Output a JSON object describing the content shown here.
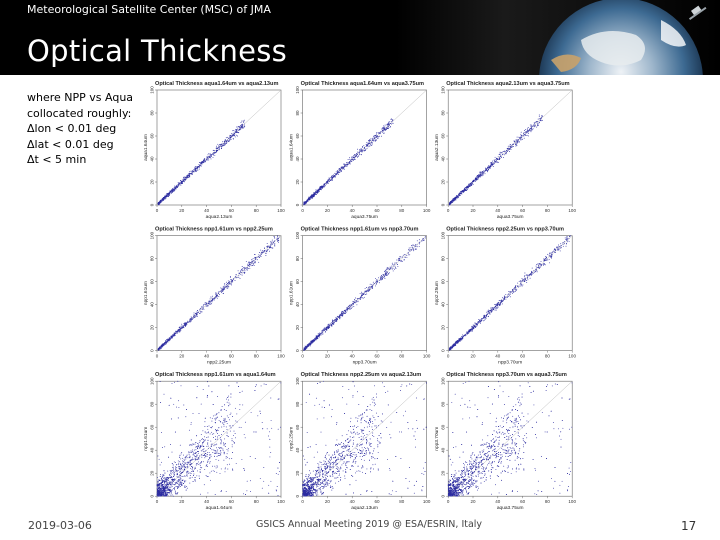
{
  "header": {
    "org": "Meteorological Satellite Center (MSC) of JMA",
    "title": "Optical Thickness"
  },
  "note": {
    "lines": [
      "where NPP vs Aqua",
      "collocated roughly:",
      "Δlon < 0.01 deg",
      "Δlat < 0.01 deg",
      "Δt < 5 min"
    ]
  },
  "footer": {
    "date": "2019-03-06",
    "center": "GSICS Annual Meeting 2019 @ ESA/ESRIN, Italy",
    "page": "17"
  },
  "colors": {
    "points": "#2c2ca0",
    "diagonal": "#bbbbbb",
    "frame": "#666666"
  },
  "chart_data": [
    {
      "type": "scatter",
      "title": "Optical Thickness aqua1.64um vs aqua2.13um",
      "xlabel": "aqua2.13um",
      "ylabel": "aqua1.64um",
      "xlim": [
        0,
        100
      ],
      "ylim": [
        0,
        100
      ],
      "x_ticks": [
        0,
        20,
        40,
        60,
        80,
        100
      ],
      "y_ticks": [
        0,
        20,
        40,
        60,
        80,
        100
      ],
      "pattern": "tight",
      "x_max": 70
    },
    {
      "type": "scatter",
      "title": "Optical Thickness aqua1.64um vs aqua3.75um",
      "xlabel": "aqua3.75um",
      "ylabel": "aqua1.64um",
      "xlim": [
        0,
        100
      ],
      "ylim": [
        0,
        100
      ],
      "x_ticks": [
        0,
        20,
        40,
        60,
        80,
        100
      ],
      "y_ticks": [
        0,
        20,
        40,
        60,
        80,
        100
      ],
      "pattern": "tight",
      "x_max": 72
    },
    {
      "type": "scatter",
      "title": "Optical Thickness aqua2.13um vs aqua3.75um",
      "xlabel": "aqua3.75um",
      "ylabel": "aqua2.13um",
      "xlim": [
        0,
        100
      ],
      "ylim": [
        0,
        100
      ],
      "x_ticks": [
        0,
        20,
        40,
        60,
        80,
        100
      ],
      "y_ticks": [
        0,
        20,
        40,
        60,
        80,
        100
      ],
      "pattern": "tight",
      "x_max": 75
    },
    {
      "type": "scatter",
      "title": "Optical Thickness npp1.61um vs npp2.25um",
      "xlabel": "npp2.25um",
      "ylabel": "npp1.61um",
      "xlim": [
        0,
        100
      ],
      "ylim": [
        0,
        100
      ],
      "x_ticks": [
        0,
        20,
        40,
        60,
        80,
        100
      ],
      "y_ticks": [
        0,
        20,
        40,
        60,
        80,
        100
      ],
      "pattern": "tight",
      "x_max": 98
    },
    {
      "type": "scatter",
      "title": "Optical Thickness npp1.61um vs npp3.70um",
      "xlabel": "npp3.70um",
      "ylabel": "npp1.61um",
      "xlim": [
        0,
        100
      ],
      "ylim": [
        0,
        100
      ],
      "x_ticks": [
        0,
        20,
        40,
        60,
        80,
        100
      ],
      "y_ticks": [
        0,
        20,
        40,
        60,
        80,
        100
      ],
      "pattern": "tight",
      "x_max": 98
    },
    {
      "type": "scatter",
      "title": "Optical Thickness npp2.25um vs npp3.70um",
      "xlabel": "npp3.70um",
      "ylabel": "npp2.25um",
      "xlim": [
        0,
        100
      ],
      "ylim": [
        0,
        100
      ],
      "x_ticks": [
        0,
        20,
        40,
        60,
        80,
        100
      ],
      "y_ticks": [
        0,
        20,
        40,
        60,
        80,
        100
      ],
      "pattern": "tight",
      "x_max": 98
    },
    {
      "type": "scatter",
      "title": "Optical Thickness npp1.61um vs aqua1.64um",
      "xlabel": "aqua1.64um",
      "ylabel": "npp1.61um",
      "xlim": [
        0,
        100
      ],
      "ylim": [
        0,
        100
      ],
      "x_ticks": [
        0,
        20,
        40,
        60,
        80,
        100
      ],
      "y_ticks": [
        0,
        20,
        40,
        60,
        80,
        100
      ],
      "pattern": "diffuse",
      "x_max": 100
    },
    {
      "type": "scatter",
      "title": "Optical Thickness npp2.25um vs aqua2.13um",
      "xlabel": "aqua2.13um",
      "ylabel": "npp2.25um",
      "xlim": [
        0,
        100
      ],
      "ylim": [
        0,
        100
      ],
      "x_ticks": [
        0,
        20,
        40,
        60,
        80,
        100
      ],
      "y_ticks": [
        0,
        20,
        40,
        60,
        80,
        100
      ],
      "pattern": "diffuse",
      "x_max": 100
    },
    {
      "type": "scatter",
      "title": "Optical Thickness npp3.70um vs aqua3.75um",
      "xlabel": "aqua3.75um",
      "ylabel": "npp3.70um",
      "xlim": [
        0,
        100
      ],
      "ylim": [
        0,
        100
      ],
      "x_ticks": [
        0,
        20,
        40,
        60,
        80,
        100
      ],
      "y_ticks": [
        0,
        20,
        40,
        60,
        80,
        100
      ],
      "pattern": "diffuse",
      "x_max": 100
    }
  ]
}
